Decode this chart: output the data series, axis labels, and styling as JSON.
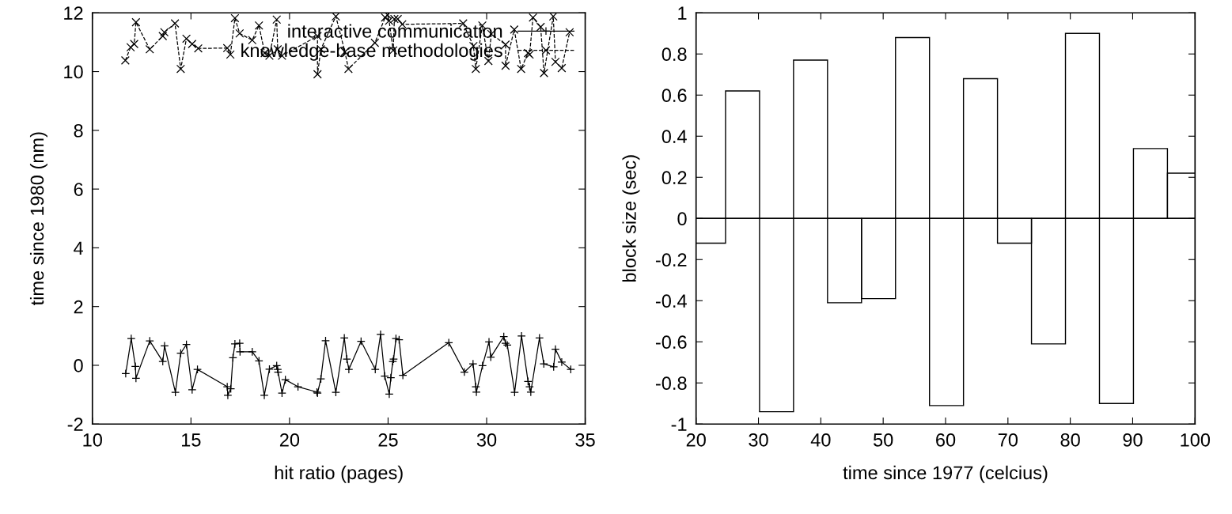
{
  "chart_data": [
    {
      "type": "line",
      "xlabel": "hit ratio (pages)",
      "ylabel": "time since 1980 (nm)",
      "xlim": [
        10,
        35
      ],
      "xticks": [
        10,
        15,
        20,
        25,
        30,
        35
      ],
      "ylim": [
        -2,
        12
      ],
      "yticks": [
        -2,
        0,
        2,
        4,
        6,
        8,
        10,
        12
      ],
      "grid": false,
      "legend": "top right",
      "series": [
        {
          "name": "interactive communication",
          "color": "#000000",
          "marker": "plus",
          "line_style": "solid",
          "x": [
            11.69,
            11.97,
            12.18,
            12.21,
            12.91,
            13.57,
            13.66,
            14.21,
            14.48,
            14.77,
            15.06,
            15.33,
            16.84,
            16.87,
            17.02,
            17.13,
            17.23,
            17.47,
            17.49,
            18.11,
            18.45,
            18.72,
            18.98,
            19.35,
            19.4,
            19.42,
            19.62,
            19.79,
            20.43,
            21.39,
            21.42,
            21.59,
            21.83,
            22.35,
            22.78,
            22.91,
            23.01,
            23.63,
            24.35,
            24.62,
            24.83,
            25.06,
            25.14,
            25.24,
            25.28,
            25.4,
            25.56,
            25.75,
            28.08,
            28.87,
            29.31,
            29.45,
            29.48,
            29.79,
            30.12,
            30.21,
            30.87,
            30.96,
            31.05,
            31.42,
            31.77,
            32.1,
            32.18,
            32.24,
            32.68,
            32.9,
            33.4,
            33.49,
            33.81,
            34.27
          ],
          "values": [
            -0.28,
            0.91,
            -0.04,
            -0.44,
            0.83,
            0.13,
            0.66,
            -0.92,
            0.41,
            0.71,
            -0.83,
            -0.14,
            -0.73,
            -1.02,
            -0.8,
            0.26,
            0.73,
            0.75,
            0.46,
            0.46,
            0.15,
            -1.02,
            -0.13,
            -0.01,
            -0.14,
            -0.23,
            -0.95,
            -0.49,
            -0.73,
            -0.91,
            -0.95,
            -0.46,
            0.84,
            -0.92,
            0.93,
            0.21,
            -0.14,
            0.82,
            -0.14,
            1.05,
            -0.37,
            -0.98,
            -0.42,
            0.13,
            0.21,
            0.91,
            0.87,
            -0.34,
            0.77,
            -0.23,
            0.05,
            -0.73,
            -0.91,
            -0.01,
            0.8,
            0.28,
            0.98,
            0.75,
            0.69,
            -0.92,
            1.0,
            -0.55,
            -0.73,
            -0.91,
            0.93,
            0.05,
            -0.05,
            0.55,
            0.11,
            -0.14
          ]
        },
        {
          "name": "knowledge-base methodologies",
          "color": "#000000",
          "marker": "cross",
          "line_style": "dashed",
          "x": [
            11.67,
            11.94,
            12.12,
            12.21,
            12.91,
            13.57,
            13.65,
            14.19,
            14.48,
            14.77,
            15.06,
            15.37,
            16.84,
            17.0,
            17.23,
            17.47,
            18.11,
            18.45,
            18.74,
            18.98,
            19.35,
            19.4,
            19.62,
            21.42,
            21.42,
            21.59,
            22.35,
            22.81,
            22.99,
            24.33,
            24.85,
            24.97,
            25.05,
            25.26,
            25.32,
            25.49,
            25.72,
            28.81,
            29.33,
            29.45,
            29.78,
            30.09,
            30.24,
            30.96,
            30.96,
            31.4,
            31.75,
            32.1,
            32.18,
            32.35,
            32.74,
            32.91,
            33.38,
            33.49,
            33.81,
            34.21
          ],
          "values": [
            10.38,
            10.83,
            10.94,
            11.68,
            10.76,
            11.21,
            11.34,
            11.64,
            10.09,
            11.12,
            10.94,
            10.79,
            10.8,
            10.58,
            11.82,
            11.3,
            11.07,
            11.57,
            10.63,
            10.54,
            11.77,
            10.76,
            10.54,
            11.21,
            9.91,
            10.76,
            11.88,
            10.67,
            10.09,
            10.98,
            11.84,
            11.93,
            11.73,
            10.72,
            11.79,
            11.79,
            11.61,
            11.64,
            10.87,
            10.09,
            11.57,
            10.36,
            11.28,
            10.92,
            10.2,
            11.43,
            10.09,
            10.63,
            10.58,
            11.84,
            11.52,
            9.95,
            11.88,
            10.33,
            10.12,
            11.34
          ]
        }
      ]
    },
    {
      "type": "bar",
      "xlabel": "time since 1977 (celcius)",
      "ylabel": "block size (sec)",
      "xlim": [
        20,
        100
      ],
      "xticks": [
        20,
        30,
        40,
        50,
        60,
        70,
        80,
        90,
        100
      ],
      "ylim": [
        -1,
        1
      ],
      "yticks": [
        -1,
        -0.8,
        -0.6,
        -0.4,
        -0.2,
        0,
        0.2,
        0.4,
        0.6,
        0.8,
        1
      ],
      "grid": false,
      "ref_lines": [
        {
          "axis": "y",
          "value": 0,
          "color": "#000000"
        }
      ],
      "series": [
        {
          "color": "#000000",
          "x": [
            22.0,
            27.45,
            32.9,
            38.35,
            43.8,
            49.25,
            54.7,
            60.15,
            65.6,
            71.05,
            76.5,
            81.95,
            87.4,
            92.85,
            98.3
          ],
          "values": [
            -0.12,
            0.62,
            -0.94,
            0.77,
            -0.41,
            -0.39,
            0.88,
            -0.91,
            0.68,
            -0.12,
            -0.61,
            0.9,
            -0.9,
            0.34,
            0.22
          ]
        }
      ]
    }
  ]
}
